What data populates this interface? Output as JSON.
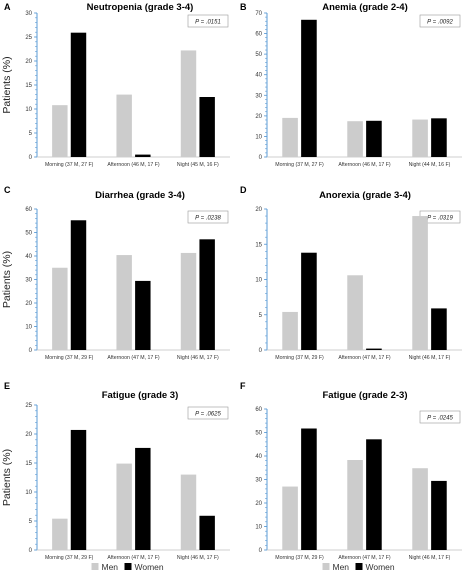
{
  "colors": {
    "men": "#cccccc",
    "women": "#000000",
    "axis": "#5b9bd5"
  },
  "ylabel": "Patients (%)",
  "legend": {
    "men": "Men",
    "women": "Women"
  },
  "chart_data": [
    {
      "type": "bar",
      "letter": "A",
      "title": "Neutropenia (grade 3-4)",
      "pvalue": "P = .0151",
      "categories": [
        "Morning (37 M, 27 F)",
        "Afternoon (46 M, 17 F)",
        "Night (45 M, 16 F)"
      ],
      "series": [
        {
          "name": "Men",
          "values": [
            10.8,
            13,
            22.2
          ]
        },
        {
          "name": "Women",
          "values": [
            25.9,
            0.5,
            12.5
          ]
        }
      ],
      "ylim": [
        0,
        30
      ],
      "yticks": [
        0,
        5,
        10,
        15,
        20,
        25,
        30
      ],
      "ylabel": "Patients (%)"
    },
    {
      "type": "bar",
      "letter": "B",
      "title": "Anemia (grade 2-4)",
      "pvalue": "P = .0092",
      "categories": [
        "Morning (37 M, 27 F)",
        "Afternoon (46 M, 17 F)",
        "Night (44 M, 16 F)"
      ],
      "series": [
        {
          "name": "Men",
          "values": [
            19,
            17.4,
            18.2
          ]
        },
        {
          "name": "Women",
          "values": [
            66.7,
            17.6,
            18.8
          ]
        }
      ],
      "ylim": [
        0,
        70
      ],
      "yticks": [
        0,
        10,
        20,
        30,
        40,
        50,
        60,
        70
      ],
      "ylabel": ""
    },
    {
      "type": "bar",
      "letter": "C",
      "title": "Diarrhea (grade 3-4)",
      "pvalue": "P = .0238",
      "categories": [
        "Morning (37 M, 29 F)",
        "Afternoon (47 M, 17 F)",
        "Night (46 M, 17 F)"
      ],
      "series": [
        {
          "name": "Men",
          "values": [
            35,
            40.4,
            41.3
          ]
        },
        {
          "name": "Women",
          "values": [
            55.2,
            29.4,
            47.1
          ]
        }
      ],
      "ylim": [
        0,
        60
      ],
      "yticks": [
        0,
        10,
        20,
        30,
        40,
        50,
        60
      ],
      "ylabel": "Patients (%)"
    },
    {
      "type": "bar",
      "letter": "D",
      "title": "Anorexia (grade 3-4)",
      "pvalue": "P = .0319",
      "categories": [
        "Morning (37 M, 29 F)",
        "Afternoon (47 M, 17 F)",
        "Night (46 M, 17 F)"
      ],
      "series": [
        {
          "name": "Men",
          "values": [
            5.4,
            10.6,
            19
          ]
        },
        {
          "name": "Women",
          "values": [
            13.8,
            0.2,
            5.9
          ]
        }
      ],
      "ylim": [
        0,
        20
      ],
      "yticks": [
        0,
        5,
        10,
        15,
        20
      ],
      "ylabel": ""
    },
    {
      "type": "bar",
      "letter": "E",
      "title": "Fatigue (grade 3)",
      "pvalue": "P = .0625",
      "categories": [
        "Morning (37 M, 29 F)",
        "Afternoon (47 M, 17 F)",
        "Night (46 M, 17 F)"
      ],
      "series": [
        {
          "name": "Men",
          "values": [
            5.4,
            14.9,
            13
          ]
        },
        {
          "name": "Women",
          "values": [
            20.7,
            17.6,
            5.9
          ]
        }
      ],
      "ylim": [
        0,
        25
      ],
      "yticks": [
        0,
        5,
        10,
        15,
        20,
        25
      ],
      "ylabel": "Patients (%)"
    },
    {
      "type": "bar",
      "letter": "F",
      "title": "Fatigue (grade 2-3)",
      "pvalue": "P = .0245",
      "categories": [
        "Morning (37 M, 29 F)",
        "Afternoon (47 M, 17 F)",
        "Night (46 M, 17 F)"
      ],
      "series": [
        {
          "name": "Men",
          "values": [
            27,
            38.3,
            34.8
          ]
        },
        {
          "name": "Women",
          "values": [
            51.7,
            47.1,
            29.4
          ]
        }
      ],
      "ylim": [
        0,
        60
      ],
      "yticks": [
        0,
        10,
        20,
        30,
        40,
        50,
        60
      ],
      "ylabel": ""
    }
  ]
}
